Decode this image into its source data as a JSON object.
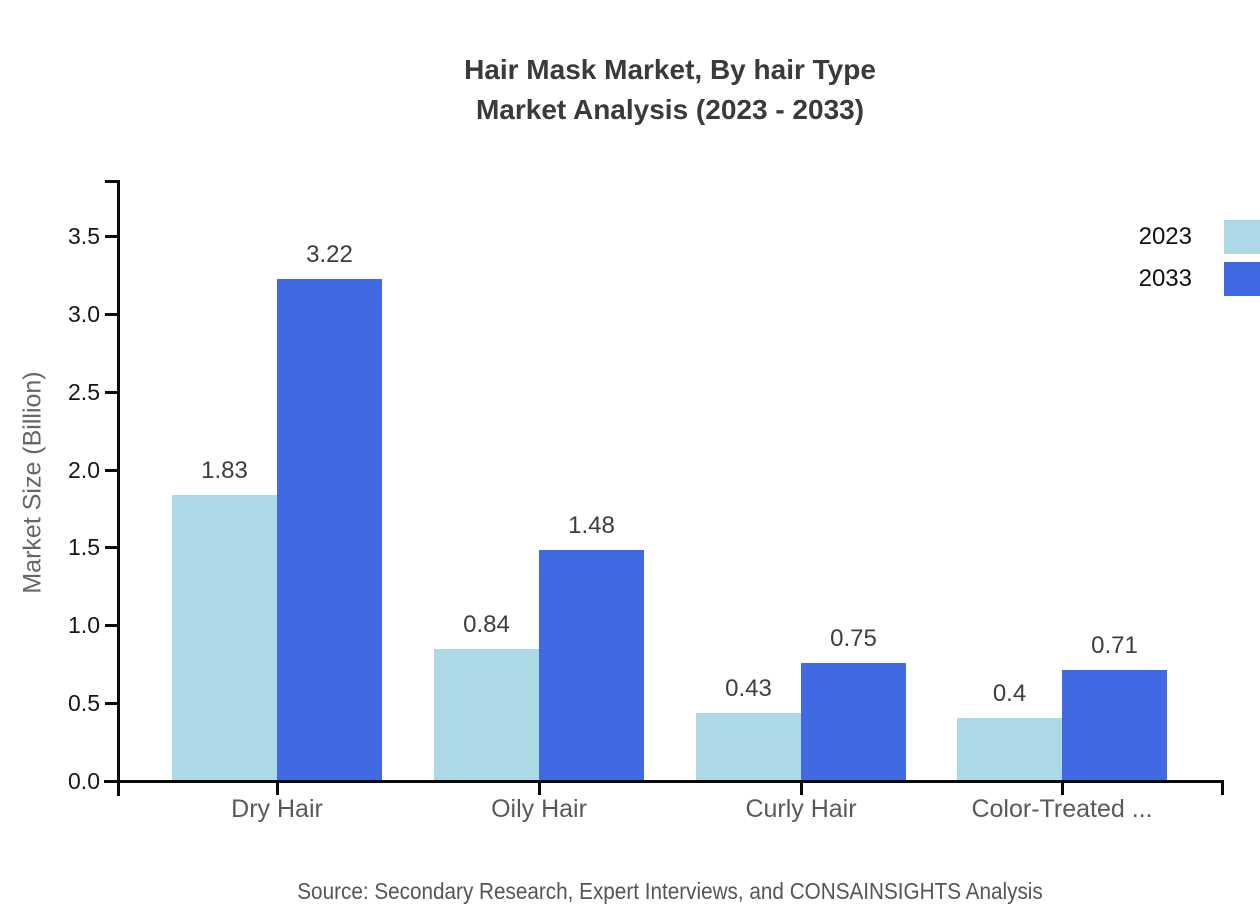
{
  "title": {
    "line1": "Hair Mask Market, By hair Type",
    "line2": "Market Analysis (2023 - 2033)"
  },
  "source": "Source: Secondary Research, Expert Interviews, and CONSAINSIGHTS Analysis",
  "legend": {
    "items": [
      {
        "label": "2023",
        "color": "#ADD8E6"
      },
      {
        "label": "2033",
        "color": "#4169E1"
      }
    ]
  },
  "chart_data": {
    "type": "bar",
    "title": "Hair Mask Market, By hair Type — Market Analysis (2023 - 2033)",
    "xlabel": "",
    "ylabel": "Market Size (Billion)",
    "categories": [
      "Dry Hair",
      "Oily Hair",
      "Curly Hair",
      "Color-Treated ..."
    ],
    "series": [
      {
        "name": "2023",
        "color": "#ADD8E6",
        "values": [
          1.83,
          0.84,
          0.43,
          0.4
        ]
      },
      {
        "name": "2033",
        "color": "#4169E1",
        "values": [
          3.22,
          1.48,
          0.75,
          0.71
        ]
      }
    ],
    "yticks": [
      0.0,
      0.5,
      1.0,
      1.5,
      2.0,
      2.5,
      3.0,
      3.5
    ],
    "ylim": [
      0,
      3.87
    ],
    "grid": false,
    "legend_position": "top-right",
    "value_labels_shown": true
  }
}
